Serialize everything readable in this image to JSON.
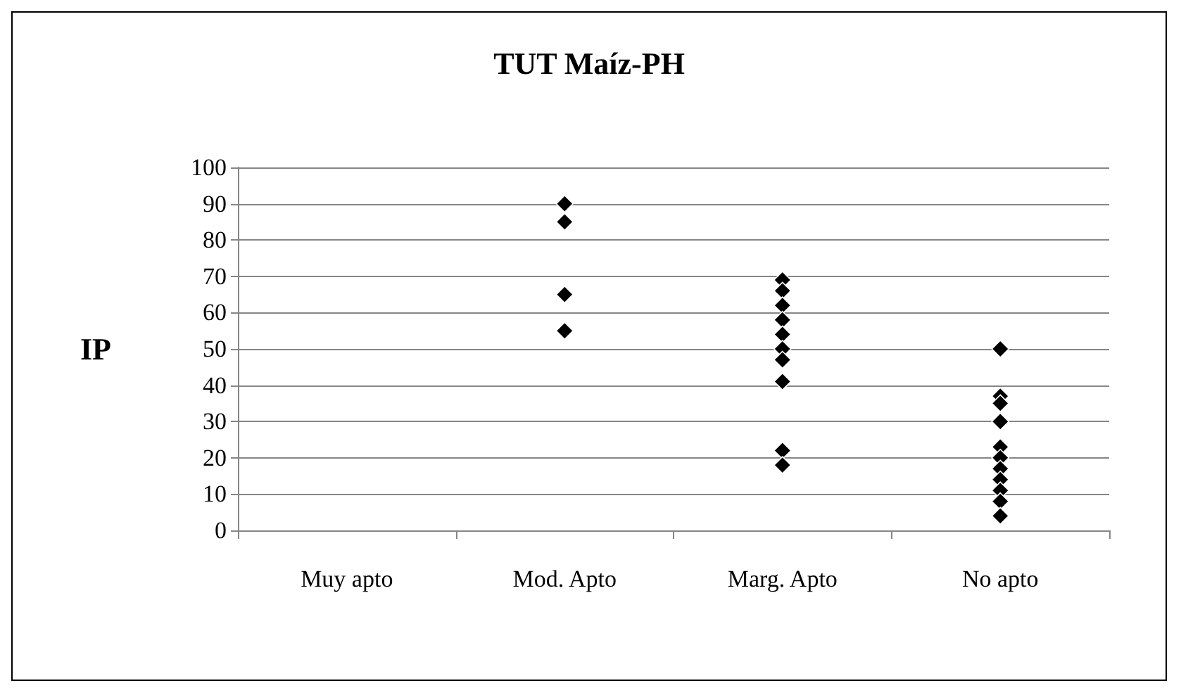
{
  "chart_data": {
    "type": "scatter",
    "title": "TUT Maíz-PH",
    "ylabel": "IP",
    "categories": [
      "Muy apto",
      "Mod. Apto",
      "Marg. Apto",
      "No apto"
    ],
    "series": [
      {
        "color": "#000000",
        "x": [
          "Mod. Apto",
          "Mod. Apto",
          "Mod. Apto",
          "Mod. Apto",
          "Marg. Apto",
          "Marg. Apto",
          "Marg. Apto",
          "Marg. Apto",
          "Marg. Apto",
          "Marg. Apto",
          "Marg. Apto",
          "Marg. Apto",
          "Marg. Apto",
          "Marg. Apto",
          "No apto",
          "No apto",
          "No apto",
          "No apto",
          "No apto",
          "No apto",
          "No apto",
          "No apto",
          "No apto",
          "No apto",
          "No apto"
        ],
        "values": [
          90,
          85,
          65,
          55,
          69,
          66,
          62,
          58,
          54,
          50,
          47,
          41,
          22,
          18,
          50,
          37,
          35,
          30,
          23,
          20,
          17,
          14,
          11,
          8,
          4
        ]
      }
    ],
    "ylim": [
      0,
      100
    ],
    "yticks": [
      0,
      10,
      20,
      30,
      40,
      50,
      60,
      70,
      80,
      90,
      100
    ],
    "grid": "y",
    "marker": "diamond"
  }
}
